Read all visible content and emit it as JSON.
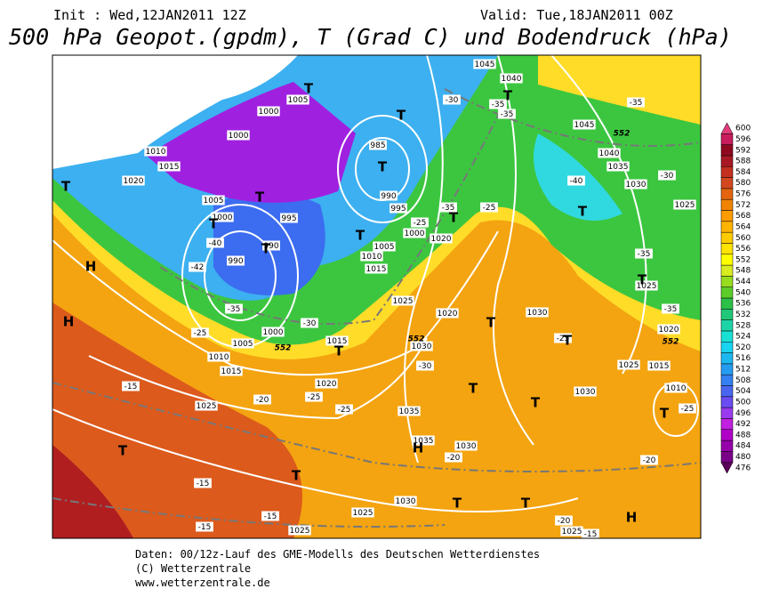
{
  "header": {
    "init": "Init : Wed,12JAN2011 12Z",
    "valid": "Valid: Tue,18JAN2011 00Z",
    "title": "500 hPa Geopot.(gpdm), T (Grad C) und Bodendruck (hPa)"
  },
  "colorbar": {
    "levels": [
      476,
      480,
      484,
      488,
      492,
      496,
      500,
      504,
      508,
      512,
      516,
      520,
      524,
      528,
      532,
      536,
      540,
      544,
      548,
      552,
      556,
      560,
      564,
      568,
      572,
      576,
      580,
      584,
      588,
      592,
      596,
      600
    ],
    "colors": [
      "#5a0058",
      "#7a0088",
      "#9600aa",
      "#b000c8",
      "#c020e0",
      "#9a3af0",
      "#6a4cf0",
      "#4a66f0",
      "#3480f0",
      "#249cf0",
      "#1cb8f0",
      "#18d4f0",
      "#18e0d4",
      "#1cd4a8",
      "#20c878",
      "#2cc048",
      "#5ccc28",
      "#98dc20",
      "#d8ec20",
      "#ffff00",
      "#ffe400",
      "#ffcc00",
      "#ffb400",
      "#ff9c00",
      "#f08400",
      "#e46410",
      "#d44820",
      "#c43020",
      "#a81824",
      "#900820",
      "#c81c5c",
      "#e03c7c"
    ]
  },
  "map": {
    "isobar_labels": [
      "1045",
      "1040",
      "1045",
      "1040",
      "1035",
      "1030",
      "1025",
      "1000",
      "1005",
      "1000",
      "1010",
      "1015",
      "1020",
      "1005",
      "1000",
      "995",
      "990",
      "990",
      "985",
      "990",
      "995",
      "1000",
      "1005",
      "1010",
      "1015",
      "1020",
      "1025",
      "1020",
      "1030",
      "1015",
      "1000",
      "1005",
      "1010",
      "1015",
      "1020",
      "1025",
      "1035",
      "1035",
      "1030",
      "1030",
      "1030",
      "1025",
      "1015",
      "1020",
      "1025",
      "1010",
      "1030",
      "1025",
      "1025",
      "1025"
    ],
    "temperature_labels": [
      "-30",
      "-35",
      "-35",
      "-35",
      "-40",
      "-30",
      "-35",
      "-25",
      "-25",
      "-35",
      "-40",
      "-42",
      "-35",
      "-30",
      "-25",
      "-30",
      "-25",
      "-25",
      "-20",
      "-15",
      "-25",
      "-20",
      "-20",
      "-15",
      "-15",
      "-15",
      "-20",
      "-15",
      "-25",
      "-35"
    ],
    "contour_labels": [
      "552",
      "552",
      "552",
      "552"
    ],
    "centers": [
      "T",
      "T",
      "T",
      "T",
      "T",
      "T",
      "T",
      "T",
      "T",
      "T",
      "T",
      "T",
      "T",
      "T",
      "T",
      "T",
      "T",
      "T",
      "T",
      "T",
      "T",
      "T",
      "H",
      "H",
      "H",
      "H"
    ]
  },
  "footer": {
    "lines": [
      "Daten: 00/12z-Lauf des GME-Modells des Deutschen Wetterdienstes",
      "(C) Wetterzentrale",
      "www.wetterzentrale.de"
    ]
  }
}
